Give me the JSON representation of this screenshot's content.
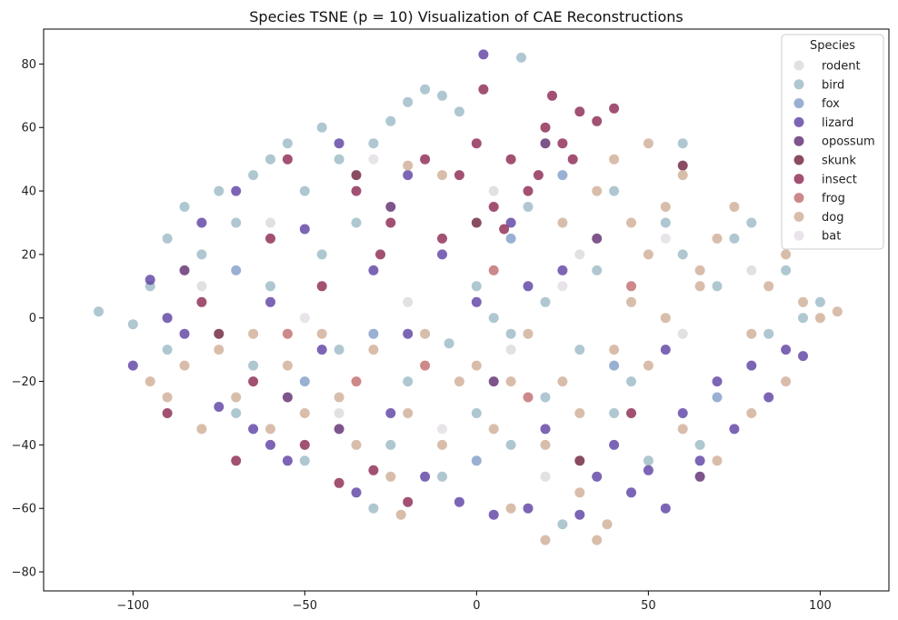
{
  "chart_data": {
    "type": "scatter",
    "title": "Species TSNE (p = 10) Visualization of CAE Reconstructions",
    "xlabel": "",
    "ylabel": "",
    "xlim": [
      -126,
      120
    ],
    "ylim": [
      -86,
      91
    ],
    "xticks": [
      -100,
      -50,
      0,
      50,
      100
    ],
    "yticks": [
      -80,
      -60,
      -40,
      -20,
      0,
      20,
      40,
      60,
      80
    ],
    "grid": false,
    "legend": {
      "title": "Species",
      "placement": "top-right"
    },
    "series": [
      {
        "name": "rodent",
        "color": "#dcd8dc",
        "points": [
          [
            -60,
            30
          ],
          [
            -20,
            5
          ],
          [
            10,
            -10
          ],
          [
            30,
            20
          ],
          [
            60,
            -5
          ],
          [
            -40,
            -30
          ],
          [
            5,
            40
          ],
          [
            -80,
            10
          ],
          [
            80,
            15
          ],
          [
            20,
            -50
          ]
        ]
      },
      {
        "name": "bird",
        "color": "#9bb9c6",
        "points": [
          [
            -110,
            2
          ],
          [
            -100,
            -2
          ],
          [
            -95,
            10
          ],
          [
            -90,
            25
          ],
          [
            -85,
            35
          ],
          [
            -80,
            20
          ],
          [
            -75,
            40
          ],
          [
            -70,
            30
          ],
          [
            -65,
            45
          ],
          [
            -60,
            50
          ],
          [
            -55,
            55
          ],
          [
            -50,
            40
          ],
          [
            -45,
            60
          ],
          [
            -40,
            50
          ],
          [
            -35,
            30
          ],
          [
            -30,
            55
          ],
          [
            -25,
            62
          ],
          [
            -20,
            68
          ],
          [
            -15,
            72
          ],
          [
            -10,
            70
          ],
          [
            -5,
            65
          ],
          [
            0,
            10
          ],
          [
            5,
            0
          ],
          [
            10,
            -5
          ],
          [
            20,
            5
          ],
          [
            30,
            -10
          ],
          [
            40,
            -30
          ],
          [
            50,
            -45
          ],
          [
            60,
            20
          ],
          [
            70,
            10
          ],
          [
            80,
            30
          ],
          [
            90,
            15
          ],
          [
            100,
            5
          ],
          [
            -90,
            -10
          ],
          [
            -70,
            -30
          ],
          [
            -50,
            -45
          ],
          [
            -30,
            -60
          ],
          [
            -10,
            -50
          ],
          [
            10,
            -40
          ],
          [
            25,
            -65
          ],
          [
            45,
            -20
          ],
          [
            65,
            -40
          ],
          [
            85,
            -5
          ],
          [
            -60,
            10
          ],
          [
            -40,
            -10
          ],
          [
            -20,
            -20
          ],
          [
            0,
            -30
          ],
          [
            20,
            -25
          ],
          [
            35,
            15
          ],
          [
            55,
            30
          ],
          [
            75,
            25
          ],
          [
            95,
            0
          ],
          [
            13,
            82
          ],
          [
            -8,
            -8
          ],
          [
            -25,
            -40
          ],
          [
            -45,
            20
          ],
          [
            -65,
            -15
          ],
          [
            15,
            35
          ],
          [
            40,
            40
          ],
          [
            60,
            55
          ]
        ]
      },
      {
        "name": "fox",
        "color": "#7f9cc7",
        "points": [
          [
            -70,
            15
          ],
          [
            -30,
            -5
          ],
          [
            10,
            25
          ],
          [
            40,
            -15
          ],
          [
            70,
            -25
          ],
          [
            -50,
            -20
          ],
          [
            0,
            -45
          ],
          [
            25,
            45
          ]
        ]
      },
      {
        "name": "lizard",
        "color": "#5b3ea2",
        "points": [
          [
            -100,
            -15
          ],
          [
            -95,
            12
          ],
          [
            -85,
            -5
          ],
          [
            -80,
            30
          ],
          [
            -75,
            -28
          ],
          [
            -70,
            40
          ],
          [
            -65,
            -35
          ],
          [
            -60,
            5
          ],
          [
            -55,
            -45
          ],
          [
            -50,
            28
          ],
          [
            -45,
            -10
          ],
          [
            -40,
            55
          ],
          [
            -35,
            -55
          ],
          [
            -30,
            15
          ],
          [
            -25,
            -30
          ],
          [
            -20,
            45
          ],
          [
            -15,
            -50
          ],
          [
            -10,
            20
          ],
          [
            -5,
            -58
          ],
          [
            0,
            5
          ],
          [
            2,
            83
          ],
          [
            5,
            -62
          ],
          [
            10,
            30
          ],
          [
            15,
            -60
          ],
          [
            20,
            -35
          ],
          [
            25,
            15
          ],
          [
            30,
            -62
          ],
          [
            35,
            -50
          ],
          [
            40,
            -40
          ],
          [
            45,
            -55
          ],
          [
            50,
            -48
          ],
          [
            55,
            -60
          ],
          [
            60,
            -30
          ],
          [
            65,
            -45
          ],
          [
            70,
            -20
          ],
          [
            75,
            -35
          ],
          [
            80,
            -15
          ],
          [
            85,
            -25
          ],
          [
            90,
            -10
          ],
          [
            95,
            -12
          ],
          [
            -90,
            0
          ],
          [
            -60,
            -40
          ],
          [
            -20,
            -5
          ],
          [
            15,
            10
          ],
          [
            55,
            -10
          ]
        ]
      },
      {
        "name": "opossum",
        "color": "#5e2a6e",
        "points": [
          [
            -85,
            15
          ],
          [
            -55,
            -25
          ],
          [
            -25,
            35
          ],
          [
            5,
            -20
          ],
          [
            35,
            25
          ],
          [
            65,
            -50
          ],
          [
            -40,
            -35
          ],
          [
            20,
            55
          ]
        ]
      },
      {
        "name": "skunk",
        "color": "#6b1f3c",
        "points": [
          [
            -75,
            -5
          ],
          [
            -35,
            45
          ],
          [
            0,
            30
          ],
          [
            30,
            -45
          ],
          [
            60,
            48
          ]
        ]
      },
      {
        "name": "insect",
        "color": "#8b2650",
        "points": [
          [
            -90,
            -30
          ],
          [
            -80,
            5
          ],
          [
            -70,
            -45
          ],
          [
            -60,
            25
          ],
          [
            -50,
            -40
          ],
          [
            -45,
            10
          ],
          [
            -40,
            -52
          ],
          [
            -35,
            40
          ],
          [
            -30,
            -48
          ],
          [
            -25,
            30
          ],
          [
            -20,
            -58
          ],
          [
            -15,
            50
          ],
          [
            -10,
            25
          ],
          [
            -5,
            45
          ],
          [
            0,
            55
          ],
          [
            2,
            72
          ],
          [
            5,
            35
          ],
          [
            10,
            50
          ],
          [
            15,
            40
          ],
          [
            20,
            60
          ],
          [
            22,
            70
          ],
          [
            25,
            55
          ],
          [
            30,
            65
          ],
          [
            35,
            62
          ],
          [
            40,
            66
          ],
          [
            45,
            -30
          ],
          [
            -55,
            50
          ],
          [
            -65,
            -20
          ],
          [
            -28,
            20
          ],
          [
            8,
            28
          ],
          [
            18,
            45
          ],
          [
            28,
            50
          ]
        ]
      },
      {
        "name": "frog",
        "color": "#c06a6c",
        "points": [
          [
            -55,
            -5
          ],
          [
            -15,
            -15
          ],
          [
            15,
            -25
          ],
          [
            45,
            10
          ],
          [
            -35,
            -20
          ],
          [
            5,
            15
          ]
        ]
      },
      {
        "name": "dog",
        "color": "#cfac96",
        "points": [
          [
            -95,
            -20
          ],
          [
            -90,
            -25
          ],
          [
            -85,
            -15
          ],
          [
            -80,
            -35
          ],
          [
            -75,
            -10
          ],
          [
            -70,
            -25
          ],
          [
            -65,
            -5
          ],
          [
            -60,
            -35
          ],
          [
            -55,
            -15
          ],
          [
            -50,
            -30
          ],
          [
            -45,
            -5
          ],
          [
            -40,
            -25
          ],
          [
            -35,
            -40
          ],
          [
            -30,
            -10
          ],
          [
            -25,
            -50
          ],
          [
            -22,
            -62
          ],
          [
            -20,
            -30
          ],
          [
            -15,
            -5
          ],
          [
            -10,
            -40
          ],
          [
            -5,
            -20
          ],
          [
            0,
            -15
          ],
          [
            5,
            -35
          ],
          [
            10,
            -20
          ],
          [
            15,
            -5
          ],
          [
            20,
            -40
          ],
          [
            25,
            -20
          ],
          [
            30,
            -30
          ],
          [
            35,
            -70
          ],
          [
            38,
            -65
          ],
          [
            40,
            -10
          ],
          [
            45,
            5
          ],
          [
            50,
            20
          ],
          [
            55,
            35
          ],
          [
            60,
            45
          ],
          [
            65,
            10
          ],
          [
            70,
            25
          ],
          [
            75,
            35
          ],
          [
            80,
            -5
          ],
          [
            85,
            10
          ],
          [
            90,
            20
          ],
          [
            95,
            5
          ],
          [
            100,
            0
          ],
          [
            105,
            2
          ],
          [
            -20,
            48
          ],
          [
            -10,
            45
          ],
          [
            10,
            -60
          ],
          [
            20,
            -70
          ],
          [
            30,
            -55
          ],
          [
            50,
            -15
          ],
          [
            60,
            -35
          ],
          [
            70,
            -45
          ],
          [
            80,
            -30
          ],
          [
            90,
            -20
          ],
          [
            40,
            50
          ],
          [
            50,
            55
          ],
          [
            25,
            30
          ],
          [
            35,
            40
          ],
          [
            45,
            30
          ],
          [
            55,
            0
          ],
          [
            65,
            15
          ]
        ]
      },
      {
        "name": "bat",
        "color": "#e4dde3",
        "points": [
          [
            -50,
            0
          ],
          [
            -10,
            -35
          ],
          [
            25,
            10
          ],
          [
            55,
            25
          ],
          [
            -30,
            50
          ]
        ]
      }
    ]
  }
}
